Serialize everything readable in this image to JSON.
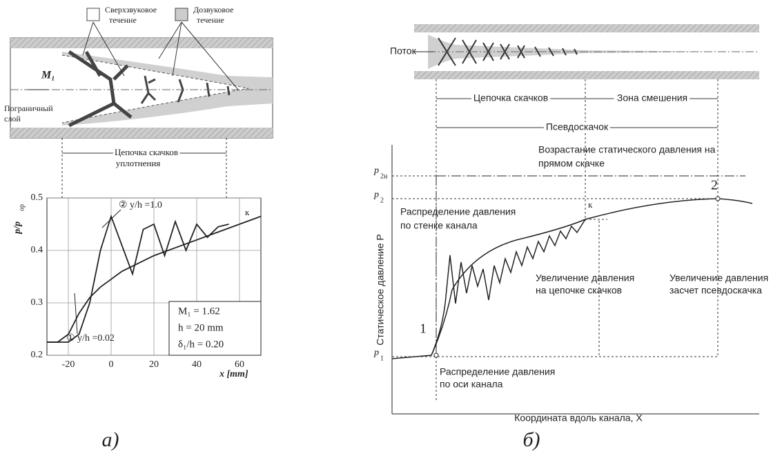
{
  "chart_data": {
    "type": "line",
    "xlabel": "x [mm]",
    "ylabel": "p/p",
    "ylabel_sub": "ор",
    "xlim": [
      -30,
      70
    ],
    "ylim": [
      0.2,
      0.5
    ],
    "xticks": [
      -20,
      0,
      20,
      40,
      60
    ],
    "yticks": [
      0.2,
      0.3,
      0.4,
      0.5
    ],
    "grid": true,
    "series": [
      {
        "name": "① y/h =0.02",
        "color": "#222",
        "x": [
          -30,
          -25,
          -20,
          -15,
          -10,
          -5,
          0,
          5,
          10,
          20,
          30,
          40,
          50,
          60,
          70
        ],
        "values": [
          0.225,
          0.225,
          0.24,
          0.28,
          0.31,
          0.33,
          0.345,
          0.36,
          0.37,
          0.39,
          0.405,
          0.42,
          0.435,
          0.45,
          0.465
        ]
      },
      {
        "name": "② y/h =1.0",
        "color": "#222",
        "x": [
          -30,
          -20,
          -15,
          -10,
          -5,
          0,
          5,
          10,
          15,
          20,
          25,
          30,
          35,
          40,
          45,
          50,
          55
        ],
        "values": [
          0.225,
          0.225,
          0.24,
          0.3,
          0.4,
          0.465,
          0.41,
          0.355,
          0.44,
          0.45,
          0.39,
          0.455,
          0.4,
          0.45,
          0.425,
          0.445,
          0.45
        ]
      }
    ],
    "annotations": [
      "к",
      "M₁ = 1.62",
      "h = 20 mm",
      "δ₁/h = 0.20"
    ]
  },
  "figure": {
    "left": {
      "supersonic": [
        "Сверхзвуковое",
        "течение"
      ],
      "subsonic": [
        "Дозвуковое",
        "течение"
      ],
      "mach": "M₁",
      "boundary": [
        "Пограничный",
        "слой"
      ],
      "train": [
        "Цепочка скачков",
        "уплотнения"
      ],
      "caption": "а)"
    },
    "right": {
      "flow": "Поток",
      "train": "Цепочка скачков",
      "mixing": "Зона смешения",
      "pseudo": "Псевдоскачок",
      "normal": [
        "Возрастание статического давления на",
        "прямом скачке"
      ],
      "p2n": "p",
      "p2n_sub": "2н",
      "p2": "p",
      "p2_sub": "2",
      "p1": "p",
      "p1_sub": "1",
      "k": "к",
      "pt2": "2",
      "pt1": "1",
      "wall": [
        "Распределение давления",
        "по стенке канала"
      ],
      "inc_train": [
        "Увеличение давления",
        "на цепочке скачков"
      ],
      "inc_pseudo": [
        "Увеличение давления",
        "засчет псевдоскачка"
      ],
      "ylabel": "Статическое давление P",
      "axis": [
        "Распределение давления",
        "по оси канала"
      ],
      "xlabel": "Координата вдоль канала, X",
      "caption": "б)"
    }
  }
}
